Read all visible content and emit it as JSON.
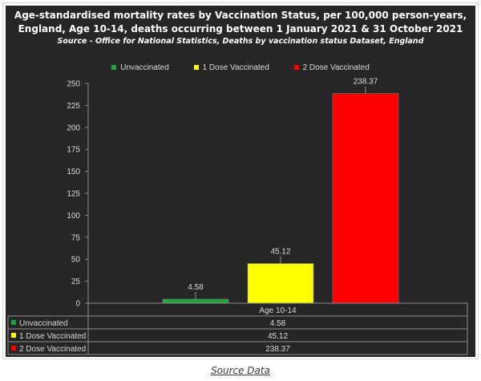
{
  "header": {
    "title_line1": "Age-standardised mortality rates by Vaccination Status, per 100,000 person-years,",
    "title_line2": "England, Age 10-14, deaths occurring between 1 January 2021 & 31 October 2021",
    "source_line": "Source - Office for National Statistics, Deaths by vaccination status Dataset, England"
  },
  "footer": {
    "source_link": "Source Data"
  },
  "chart_data": {
    "type": "bar",
    "title": "Age-standardised mortality rates by Vaccination Status, per 100,000 person-years, England, Age 10-14, deaths occurring between 1 January 2021 & 31 October 2021",
    "subtitle": "Source - Office for National Statistics, Deaths by vaccination status Dataset, England",
    "categories": [
      "Age 10-14"
    ],
    "series": [
      {
        "name": "Unvaccinated",
        "values": [
          4.58
        ],
        "color": "#1fa33a",
        "label": "4.58"
      },
      {
        "name": "1 Dose Vaccinated",
        "values": [
          45.12
        ],
        "color": "#ffff00",
        "label": "45.12"
      },
      {
        "name": "2 Dose Vaccinated",
        "values": [
          238.37
        ],
        "color": "#ff0000",
        "label": "238.37"
      }
    ],
    "y_ticks": [
      0,
      25,
      50,
      75,
      100,
      125,
      150,
      175,
      200,
      225,
      250
    ],
    "ylim": [
      0,
      250
    ],
    "grid": false,
    "legend": "top",
    "data_table": true,
    "colors": {
      "background": "#262626",
      "text": "#d9d9d9",
      "axis": "#8c8c8c"
    }
  }
}
